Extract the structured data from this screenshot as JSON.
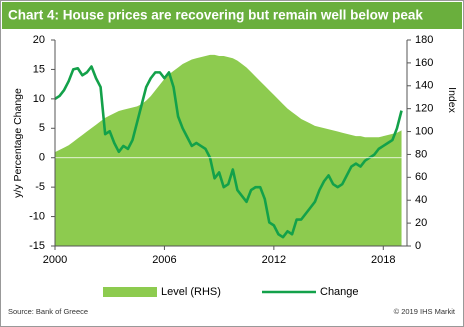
{
  "chart_data": {
    "type": "combo",
    "title": "Chart 4: House  prices are recovering but remain well below peak",
    "y_label": "y/y Percentage Change",
    "y2_label": "Index",
    "source": "Source: Bank of Greece",
    "credit": "© 2019 IHS Markit",
    "xlim": [
      2000,
      2019.3
    ],
    "xticks": [
      2000,
      2006,
      2012,
      2018
    ],
    "ylim": [
      -15,
      20
    ],
    "yticks": [
      -15,
      -10,
      -5,
      0,
      5,
      10,
      15,
      20
    ],
    "y2lim": [
      0,
      180
    ],
    "y2ticks": [
      0,
      20,
      40,
      60,
      80,
      100,
      120,
      140,
      160,
      180
    ],
    "x": [
      2000,
      2000.25,
      2000.5,
      2000.75,
      2001,
      2001.25,
      2001.5,
      2001.75,
      2002,
      2002.25,
      2002.5,
      2002.75,
      2003,
      2003.25,
      2003.5,
      2003.75,
      2004,
      2004.25,
      2004.5,
      2004.75,
      2005,
      2005.25,
      2005.5,
      2005.75,
      2006,
      2006.25,
      2006.5,
      2006.75,
      2007,
      2007.25,
      2007.5,
      2007.75,
      2008,
      2008.25,
      2008.5,
      2008.75,
      2009,
      2009.25,
      2009.5,
      2009.75,
      2010,
      2010.25,
      2010.5,
      2010.75,
      2011,
      2011.25,
      2011.5,
      2011.75,
      2012,
      2012.25,
      2012.5,
      2012.75,
      2013,
      2013.25,
      2013.5,
      2013.75,
      2014,
      2014.25,
      2014.5,
      2014.75,
      2015,
      2015.25,
      2015.5,
      2015.75,
      2016,
      2016.25,
      2016.5,
      2016.75,
      2017,
      2017.25,
      2017.5,
      2017.75,
      2018,
      2018.25,
      2018.5,
      2018.75,
      2019
    ],
    "series": [
      {
        "name": "Level (RHS)",
        "type": "area",
        "axis": "y2",
        "color": "#8dcb4f",
        "values": [
          82,
          84,
          86,
          88,
          91,
          94,
          97,
          100,
          103,
          106,
          109,
          112,
          114,
          116,
          118,
          119,
          120,
          121,
          122,
          124,
          127,
          131,
          136,
          141,
          146,
          150,
          153,
          156,
          159,
          161,
          163,
          164,
          165,
          166,
          167,
          167,
          166,
          166,
          165,
          164,
          162,
          159,
          156,
          152,
          148,
          144,
          140,
          136,
          132,
          128,
          124,
          120,
          117,
          114,
          111,
          109,
          107,
          105,
          104,
          103,
          102,
          101,
          100,
          99,
          98,
          97,
          96,
          96,
          95,
          95,
          95,
          95,
          96,
          97,
          98,
          99,
          101
        ]
      },
      {
        "name": "Change",
        "type": "line",
        "color": "#13a14a",
        "values": [
          10,
          10.5,
          11.5,
          13,
          15,
          15.2,
          14,
          14.5,
          15.5,
          13.5,
          12,
          4,
          4.5,
          2.5,
          1,
          2,
          1.5,
          3,
          6,
          9,
          12,
          13.5,
          14.5,
          14.5,
          13.5,
          14.5,
          12,
          7,
          5,
          3.5,
          2,
          2.5,
          2,
          1.5,
          0,
          -3.5,
          -2.5,
          -5,
          -4.5,
          -2,
          -5.5,
          -6.5,
          -7.5,
          -5.5,
          -5,
          -5,
          -7,
          -11,
          -11.5,
          -13,
          -13.5,
          -12.5,
          -13,
          -10.5,
          -10.5,
          -9.5,
          -8.5,
          -7.5,
          -5.5,
          -4,
          -3,
          -4.5,
          -5,
          -4.5,
          -3,
          -1.5,
          -1,
          -1.5,
          -0.5,
          0,
          0.5,
          1.5,
          2,
          2.5,
          3,
          5,
          8
        ]
      }
    ]
  }
}
